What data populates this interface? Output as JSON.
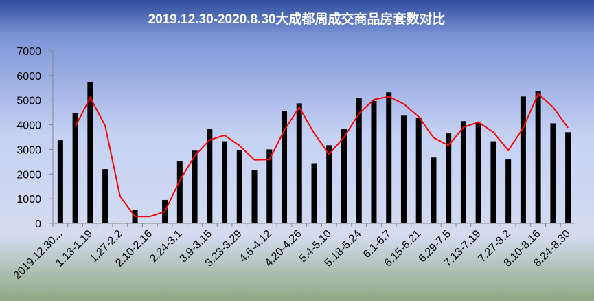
{
  "chart_data": {
    "type": "bar",
    "title": "2019.12.30-2020.8.30大成都周成交商品房套数对比",
    "categories": [
      "2019.12.30...",
      null,
      "1.13-1.19",
      null,
      "1.27-2.2",
      null,
      "2.10-2.16",
      null,
      "2.24-3.1",
      null,
      "3.9-3.15",
      null,
      "3.23-3.29",
      null,
      "4.6-4.12",
      null,
      "4.20-4.26",
      null,
      "5.4-5.10",
      null,
      "5.18-5.24",
      null,
      "6.1-6.7",
      null,
      "6.15-6.21",
      null,
      "6.29-7.5",
      null,
      "7.13-7.19",
      null,
      "7.27-8.2",
      null,
      "8.10-8.16",
      null,
      "8.24-8.30"
    ],
    "series": [
      {
        "type": "bar",
        "color": "#000000",
        "values": [
          3370,
          4480,
          5730,
          2200,
          0,
          550,
          0,
          950,
          2530,
          2950,
          3820,
          3330,
          2980,
          2170,
          3000,
          4550,
          4870,
          2440,
          3170,
          3820,
          5080,
          4970,
          5320,
          4370,
          4280,
          2670,
          3650,
          4150,
          4070,
          3330,
          2590,
          5150,
          5370,
          4060,
          3700
        ]
      },
      {
        "type": "line",
        "color": "#ff0000",
        "values": [
          null,
          3925,
          5105,
          3965,
          1100,
          275,
          275,
          475,
          1740,
          2740,
          3385,
          3575,
          3155,
          2575,
          2585,
          3775,
          4710,
          3655,
          2805,
          3495,
          4450,
          5025,
          5145,
          4845,
          4325,
          3475,
          3160,
          3900,
          4110,
          3700,
          2960,
          3870,
          5260,
          4715,
          3880
        ]
      }
    ],
    "ylim": [
      0,
      7000
    ],
    "yticks": [
      0,
      1000,
      2000,
      3000,
      4000,
      5000,
      6000,
      7000
    ]
  }
}
